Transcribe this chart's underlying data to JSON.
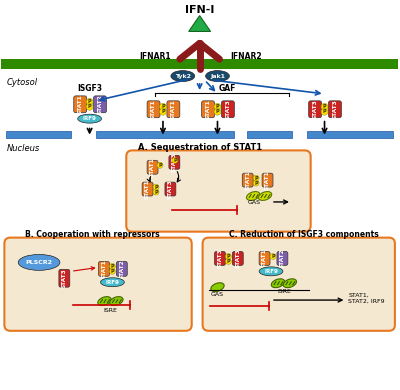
{
  "bg_color": "#ffffff",
  "membrane_color": "#2e8b00",
  "cytosol_label": "Cytosol",
  "nucleus_label": "Nucleus",
  "ifni_label": "IFN-I",
  "ifnar1_label": "IFNAR1",
  "ifnar2_label": "IFNAR2",
  "tyk2_label": "Tyk2",
  "jak1_label": "Jak1",
  "isgf3_label": "ISGF3",
  "gaf_label": "GAF",
  "stat1_color": "#e87820",
  "stat2_color": "#7b5ea7",
  "stat3_color": "#cc2222",
  "irf9_color": "#44bbcc",
  "p_color": "#ffdd00",
  "receptor_color": "#8b1a1a",
  "kinase_color": "#1a4a6b",
  "panel_bg": "#f5e8d0",
  "panel_border": "#e87820",
  "arrow_blue": "#1155aa",
  "arrow_red": "#cc0000",
  "section_a_title": "A. Sequestration of STAT1",
  "section_b_title": "B. Cooperation with repressors",
  "section_c_title": "C. Reduction of ISGF3 components",
  "plscr2_label": "PLSCR2",
  "output_c": "STAT1,\nSTAT2, IRF9"
}
